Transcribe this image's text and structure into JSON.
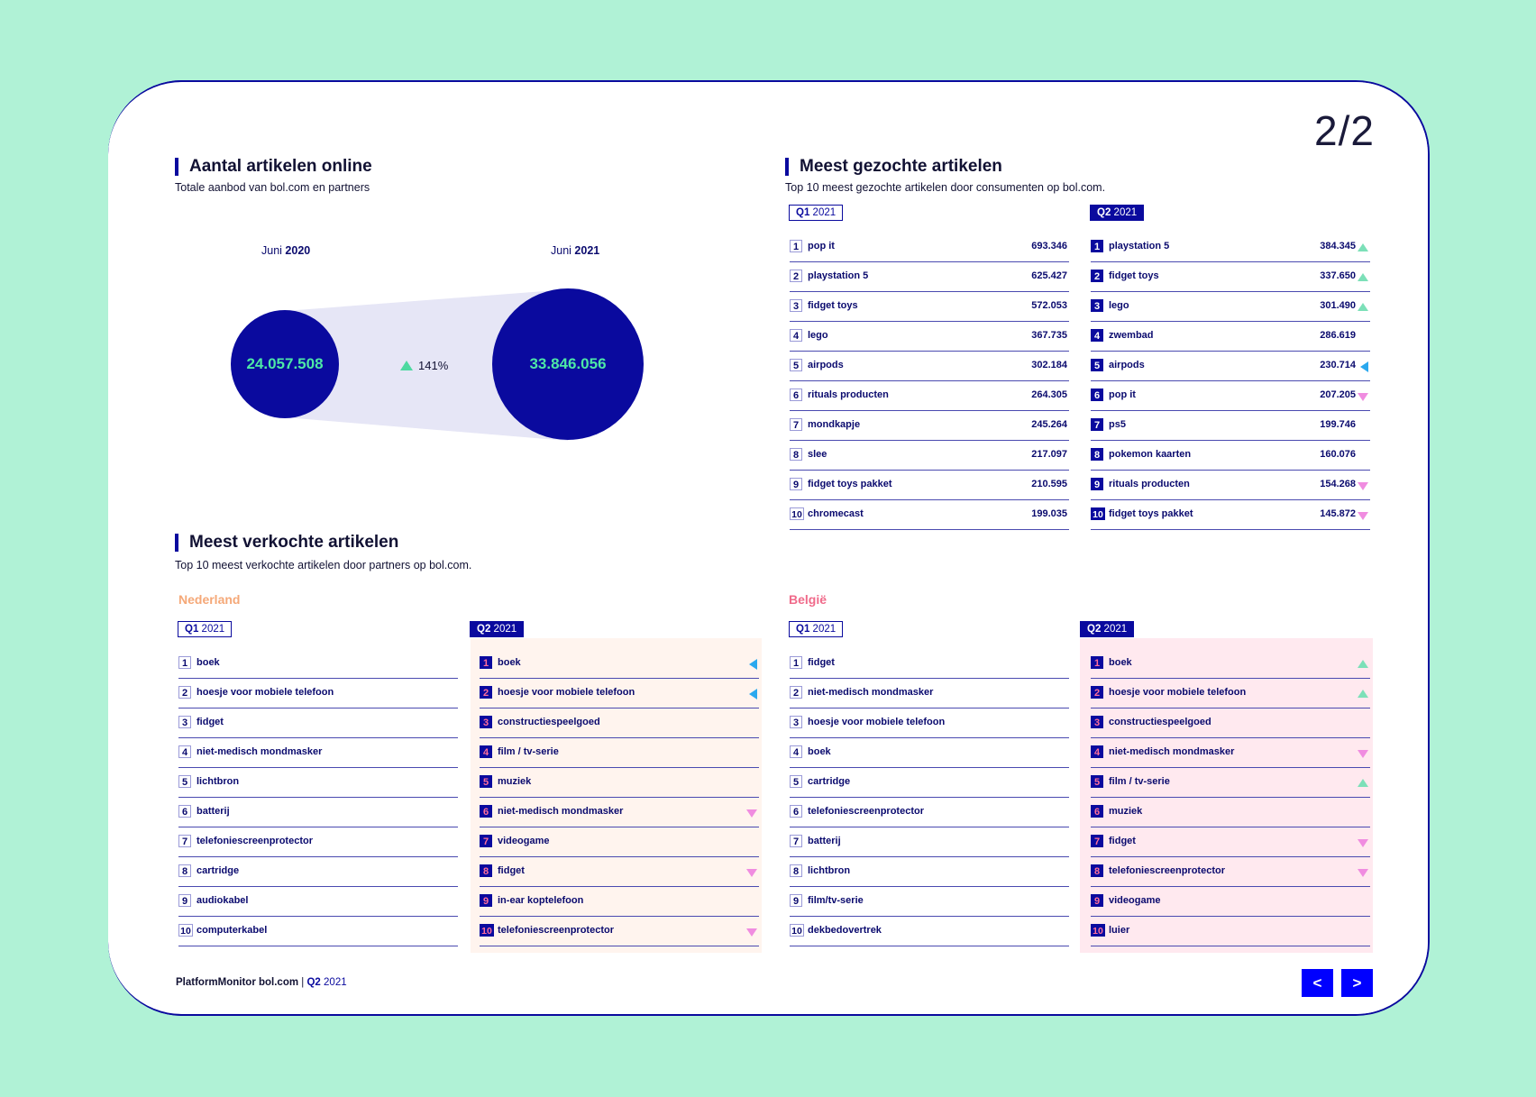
{
  "page_number": "2/2",
  "articles_online": {
    "title": "Aantal artikelen online",
    "subtitle": "Totale aanbod van bol.com en partners",
    "left": {
      "label_prefix": "Juni",
      "year": "2020",
      "value": "24.057.508"
    },
    "right": {
      "label_prefix": "Juni",
      "year": "2021",
      "value": "33.846.056"
    },
    "growth": "141%"
  },
  "searched": {
    "title": "Meest gezochte artikelen",
    "subtitle": "Top 10 meest gezochte artikelen door consumenten op bol.com.",
    "q1": {
      "badge_q": "Q1",
      "badge_year": "2021",
      "items": [
        {
          "rank": "1",
          "label": "pop it",
          "value": "693.346"
        },
        {
          "rank": "2",
          "label": "playstation 5",
          "value": "625.427"
        },
        {
          "rank": "3",
          "label": "fidget toys",
          "value": "572.053"
        },
        {
          "rank": "4",
          "label": "lego",
          "value": "367.735"
        },
        {
          "rank": "5",
          "label": "airpods",
          "value": "302.184"
        },
        {
          "rank": "6",
          "label": "rituals producten",
          "value": "264.305"
        },
        {
          "rank": "7",
          "label": "mondkapje",
          "value": "245.264"
        },
        {
          "rank": "8",
          "label": "slee",
          "value": "217.097"
        },
        {
          "rank": "9",
          "label": "fidget toys pakket",
          "value": "210.595"
        },
        {
          "rank": "10",
          "label": "chromecast",
          "value": "199.035"
        }
      ]
    },
    "q2": {
      "badge_q": "Q2",
      "badge_year": "2021",
      "items": [
        {
          "rank": "1",
          "label": "playstation 5",
          "value": "384.345",
          "trend": "up"
        },
        {
          "rank": "2",
          "label": "fidget toys",
          "value": "337.650",
          "trend": "up"
        },
        {
          "rank": "3",
          "label": "lego",
          "value": "301.490",
          "trend": "up"
        },
        {
          "rank": "4",
          "label": "zwembad",
          "value": "286.619",
          "trend": ""
        },
        {
          "rank": "5",
          "label": "airpods",
          "value": "230.714",
          "trend": "left"
        },
        {
          "rank": "6",
          "label": "pop it",
          "value": "207.205",
          "trend": "down"
        },
        {
          "rank": "7",
          "label": "ps5",
          "value": "199.746",
          "trend": ""
        },
        {
          "rank": "8",
          "label": "pokemon kaarten",
          "value": "160.076",
          "trend": ""
        },
        {
          "rank": "9",
          "label": "rituals producten",
          "value": "154.268",
          "trend": "down"
        },
        {
          "rank": "10",
          "label": "fidget toys pakket",
          "value": "145.872",
          "trend": "down"
        }
      ]
    }
  },
  "sold": {
    "title": "Meest verkochte artikelen",
    "subtitle": "Top 10 meest verkochte artikelen door partners op bol.com.",
    "nl": {
      "country": "Nederland",
      "color": "#f5a878",
      "q1": {
        "badge_q": "Q1",
        "badge_year": "2021",
        "items": [
          {
            "rank": "1",
            "label": "boek"
          },
          {
            "rank": "2",
            "label": "hoesje voor mobiele telefoon"
          },
          {
            "rank": "3",
            "label": "fidget"
          },
          {
            "rank": "4",
            "label": "niet-medisch mondmasker"
          },
          {
            "rank": "5",
            "label": "lichtbron"
          },
          {
            "rank": "6",
            "label": "batterij"
          },
          {
            "rank": "7",
            "label": "telefoniescreenprotector"
          },
          {
            "rank": "8",
            "label": "cartridge"
          },
          {
            "rank": "9",
            "label": "audiokabel"
          },
          {
            "rank": "10",
            "label": "computerkabel"
          }
        ]
      },
      "q2": {
        "badge_q": "Q2",
        "badge_year": "2021",
        "items": [
          {
            "rank": "1",
            "label": "boek",
            "trend": "left"
          },
          {
            "rank": "2",
            "label": "hoesje voor mobiele telefoon",
            "trend": "left"
          },
          {
            "rank": "3",
            "label": "constructiespeelgoed",
            "trend": ""
          },
          {
            "rank": "4",
            "label": "film / tv-serie",
            "trend": ""
          },
          {
            "rank": "5",
            "label": "muziek",
            "trend": ""
          },
          {
            "rank": "6",
            "label": "niet-medisch mondmasker",
            "trend": "down"
          },
          {
            "rank": "7",
            "label": "videogame",
            "trend": ""
          },
          {
            "rank": "8",
            "label": "fidget",
            "trend": "down"
          },
          {
            "rank": "9",
            "label": "in-ear koptelefoon",
            "trend": ""
          },
          {
            "rank": "10",
            "label": "telefoniescreenprotector",
            "trend": "down"
          }
        ]
      }
    },
    "be": {
      "country": "België",
      "color": "#f06a8a",
      "q1": {
        "badge_q": "Q1",
        "badge_year": "2021",
        "items": [
          {
            "rank": "1",
            "label": "fidget"
          },
          {
            "rank": "2",
            "label": "niet-medisch mondmasker"
          },
          {
            "rank": "3",
            "label": "hoesje voor mobiele telefoon"
          },
          {
            "rank": "4",
            "label": "boek"
          },
          {
            "rank": "5",
            "label": "cartridge"
          },
          {
            "rank": "6",
            "label": "telefoniescreenprotector"
          },
          {
            "rank": "7",
            "label": "batterij"
          },
          {
            "rank": "8",
            "label": "lichtbron"
          },
          {
            "rank": "9",
            "label": "film/tv-serie"
          },
          {
            "rank": "10",
            "label": "dekbedovertrek"
          }
        ]
      },
      "q2": {
        "badge_q": "Q2",
        "badge_year": "2021",
        "items": [
          {
            "rank": "1",
            "label": "boek",
            "trend": "up"
          },
          {
            "rank": "2",
            "label": "hoesje voor mobiele telefoon",
            "trend": "up"
          },
          {
            "rank": "3",
            "label": "constructiespeelgoed",
            "trend": ""
          },
          {
            "rank": "4",
            "label": "niet-medisch mondmasker",
            "trend": "down"
          },
          {
            "rank": "5",
            "label": "film / tv-serie",
            "trend": "up"
          },
          {
            "rank": "6",
            "label": "muziek",
            "trend": ""
          },
          {
            "rank": "7",
            "label": "fidget",
            "trend": "down"
          },
          {
            "rank": "8",
            "label": "telefoniescreenprotector",
            "trend": "down"
          },
          {
            "rank": "9",
            "label": "videogame",
            "trend": ""
          },
          {
            "rank": "10",
            "label": "luier",
            "trend": ""
          }
        ]
      }
    }
  },
  "footer": {
    "brand": "PlatformMonitor bol.com",
    "sep": " | ",
    "q": "Q2",
    "year": " 2021"
  },
  "nav": {
    "prev": "<",
    "next": ">"
  },
  "colors": {
    "accent": "#0a0a9e",
    "mint": "#4de8a6",
    "bg": "#b0f2d6"
  }
}
